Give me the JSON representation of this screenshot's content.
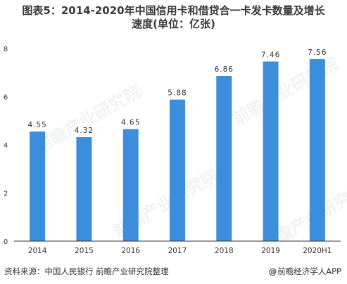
{
  "title_line1": "图表5：2014-2020年中国信用卡和借贷合一卡发卡数量及增长",
  "title_line2": "速度(单位：亿张)",
  "source_text": "资料来源：中国人民银行  前瞻产业研究院整理",
  "brand_text": "前瞻经济学人APP",
  "watermark_text": "前瞻产业研究院",
  "colors": {
    "bar": "#3C8DDB",
    "axis": "#333333",
    "text": "#333333"
  },
  "chart_data": {
    "type": "bar",
    "title": "图表5：2014-2020年中国信用卡和借贷合一卡发卡数量及增长速度(单位：亿张)",
    "categories": [
      "2014",
      "2015",
      "2016",
      "2017",
      "2018",
      "2019",
      "2020H1"
    ],
    "values": [
      4.55,
      4.32,
      4.65,
      5.88,
      6.86,
      7.46,
      7.56
    ],
    "value_labels": [
      "4.55",
      "4.32",
      "4.65",
      "5.88",
      "6.86",
      "7.46",
      "7.56"
    ],
    "y_ticks": [
      "0",
      "2",
      "4",
      "6",
      "8"
    ],
    "ylim": [
      0,
      8
    ],
    "grid": false,
    "legend": "none"
  }
}
